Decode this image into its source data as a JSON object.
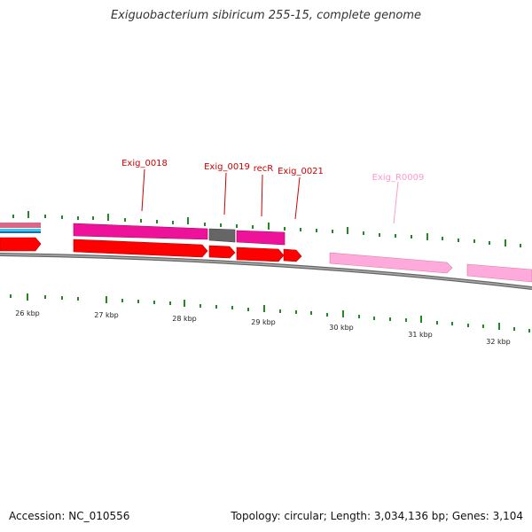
{
  "title": "Exiguobacterium sibiricum 255-15, complete genome",
  "footer": {
    "accession": "Accession: NC_010556",
    "info": "Topology: circular; Length: 3,034,136 bp; Genes: 3,104"
  },
  "colors": {
    "gene_label": "#cc0000",
    "rna_label": "#ff99cc",
    "cds": "#ff0000",
    "gene": "#ee1199",
    "pseudo": "#666666",
    "rna": "#ffaadd",
    "tick": "#228822",
    "backbone": "#888888"
  },
  "scale_labels": [
    "26 kbp",
    "27 kbp",
    "28 kbp",
    "29 kbp",
    "30 kbp",
    "31 kbp",
    "32 kbp"
  ],
  "gene_labels": [
    {
      "text": "Exig_0018",
      "type": "gene"
    },
    {
      "text": "Exig_0019",
      "type": "gene"
    },
    {
      "text": "recR",
      "type": "gene"
    },
    {
      "text": "Exig_0021",
      "type": "gene"
    },
    {
      "text": "Exig_R0009",
      "type": "rna"
    }
  ]
}
